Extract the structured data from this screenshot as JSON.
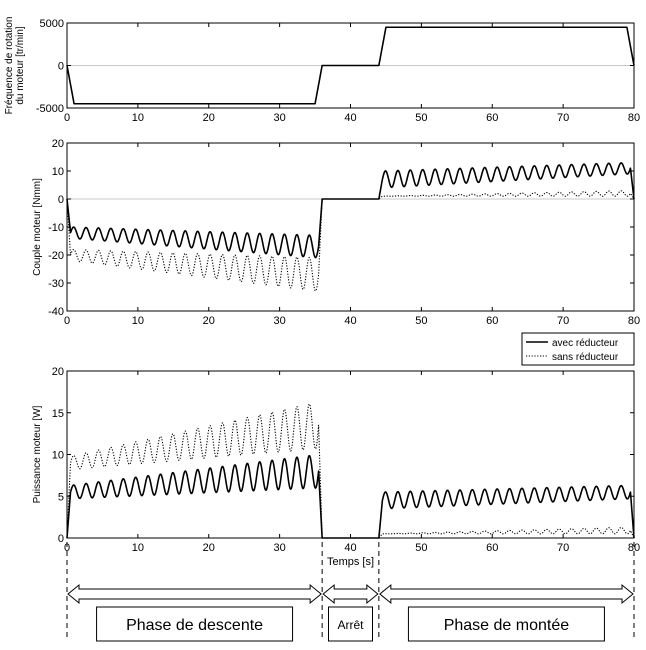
{
  "chart_data": [
    {
      "type": "line",
      "ylabel_lines": [
        "Fréquence de rotation",
        "du moteur [tr/min]"
      ],
      "xlim": [
        0,
        80
      ],
      "ylim": [
        -5000,
        5000
      ],
      "xticks": [
        0,
        10,
        20,
        30,
        40,
        50,
        60,
        70,
        80
      ],
      "yticks": [
        -5000,
        0,
        5000
      ],
      "series": [
        {
          "x": [
            0,
            1,
            35,
            36,
            44,
            45,
            79,
            80
          ],
          "y": [
            0,
            -4500,
            -4500,
            0,
            0,
            4500,
            4500,
            0
          ]
        }
      ]
    },
    {
      "type": "line",
      "ylabel": "Couple moteur [Nmm]",
      "xlim": [
        0,
        80
      ],
      "ylim": [
        -40,
        20
      ],
      "xticks": [
        0,
        10,
        20,
        30,
        40,
        50,
        60,
        70,
        80
      ],
      "yticks": [
        -40,
        -30,
        -20,
        -10,
        0,
        10,
        20
      ],
      "series": [
        {
          "name": "avec réducteur",
          "style": "solid",
          "segments": [
            {
              "x": [
                0.5,
                35.5
              ],
              "mean": [
                -12,
                -17
              ],
              "amplitude": [
                2,
                4
              ],
              "period": 1.75
            },
            {
              "x": [
                44.5,
                79.5
              ],
              "mean": [
                7,
                11
              ],
              "amplitude": [
                3,
                2
              ],
              "period": 1.75
            }
          ]
        },
        {
          "name": "sans réducteur",
          "style": "dotted",
          "segments": [
            {
              "x": [
                0.5,
                35.5
              ],
              "mean": [
                -20,
                -27
              ],
              "amplitude": [
                2,
                6
              ],
              "period": 1.75
            },
            {
              "x": [
                44.5,
                79.5
              ],
              "mean": [
                1,
                2
              ],
              "amplitude": [
                0,
                1
              ],
              "period": 1.75
            }
          ]
        }
      ]
    },
    {
      "type": "line",
      "ylabel": "Puissance moteur [W]",
      "xlabel": "Temps [s]",
      "xlim": [
        0,
        80
      ],
      "ylim": [
        0,
        20
      ],
      "xticks": [
        0,
        10,
        20,
        30,
        40,
        50,
        60,
        70,
        80
      ],
      "yticks": [
        0,
        5,
        10,
        15,
        20
      ],
      "legend_position": "top-right",
      "legend": [
        "avec réducteur",
        "sans réducteur"
      ],
      "series": [
        {
          "name": "avec réducteur",
          "style": "solid",
          "segments": [
            {
              "x": [
                0.5,
                35.5
              ],
              "mean": [
                5.5,
                8
              ],
              "amplitude": [
                0.8,
                2
              ],
              "period": 1.75
            },
            {
              "x": [
                44.5,
                79.5
              ],
              "mean": [
                4.5,
                5.5
              ],
              "amplitude": [
                1,
                0.8
              ],
              "period": 1.75
            }
          ]
        },
        {
          "name": "sans réducteur",
          "style": "dotted",
          "segments": [
            {
              "x": [
                0.5,
                35.5
              ],
              "mean": [
                9,
                13.5
              ],
              "amplitude": [
                0.8,
                2.8
              ],
              "period": 1.75
            },
            {
              "x": [
                44.5,
                79.5
              ],
              "mean": [
                0.5,
                0.9
              ],
              "amplitude": [
                0,
                0.4
              ],
              "period": 1.75
            }
          ]
        }
      ]
    }
  ],
  "annotations": {
    "phases": [
      {
        "label": "Phase de descente",
        "from": 0,
        "to": 36
      },
      {
        "label": "Arrêt",
        "from": 36,
        "to": 44
      },
      {
        "label": "Phase de montée",
        "from": 44,
        "to": 80
      }
    ]
  },
  "colors": {
    "line": "#000000",
    "zero_line": "#c8c8c8",
    "axis": "#000000"
  }
}
